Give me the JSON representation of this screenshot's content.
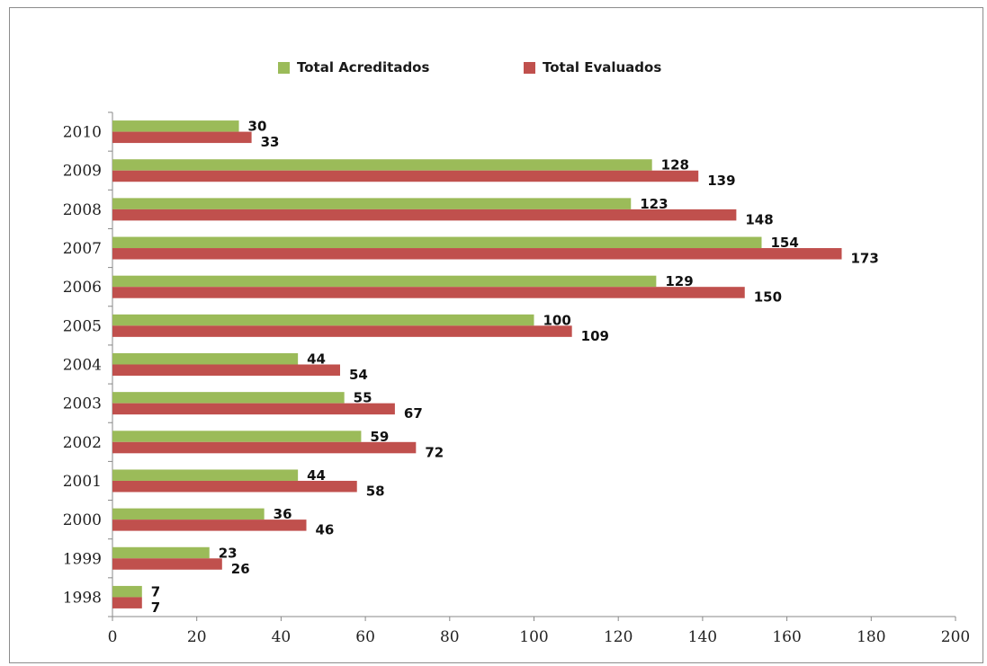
{
  "chart_data": {
    "type": "bar",
    "orientation": "horizontal",
    "categories": [
      "2010",
      "2009",
      "2008",
      "2007",
      "2006",
      "2005",
      "2004",
      "2003",
      "2002",
      "2001",
      "2000",
      "1999",
      "1998"
    ],
    "series": [
      {
        "name": "Total Acreditados",
        "color": "#9bbb59",
        "values": [
          30,
          128,
          123,
          154,
          129,
          100,
          44,
          55,
          59,
          44,
          36,
          23,
          7
        ]
      },
      {
        "name": "Total Evaluados",
        "color": "#c0504d",
        "values": [
          33,
          139,
          148,
          173,
          150,
          109,
          54,
          67,
          72,
          58,
          46,
          26,
          7
        ]
      }
    ],
    "xticks": [
      "0",
      "20",
      "40",
      "60",
      "80",
      "100",
      "120",
      "140",
      "160",
      "180",
      "200"
    ],
    "xlim": [
      0,
      200
    ],
    "legend_position": "top",
    "grid": false
  }
}
